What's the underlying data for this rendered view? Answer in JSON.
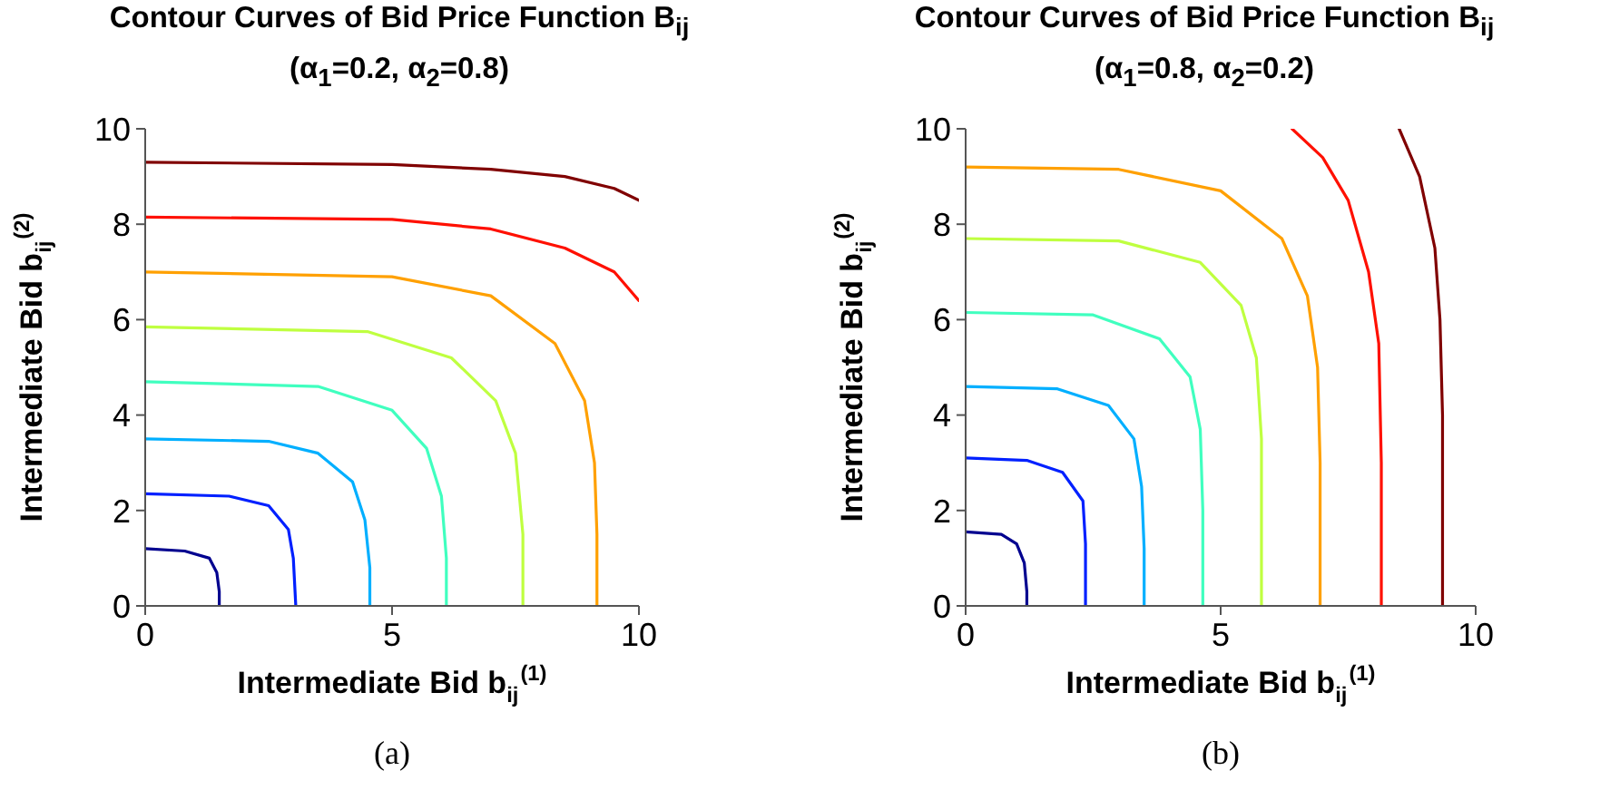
{
  "chart_data": [
    {
      "type": "line",
      "title": "Contour Curves of Bid Price Function B$_{ij}$",
      "subtitle": "(α$_{1}$=0.2, α$_{2}$=0.8)",
      "xlabel": "Intermediate Bid b$_{ij}$$^{(1)}$",
      "ylabel": "Intermediate Bid b$_{ij}$$^{(2)}$",
      "annotations": [
        "(a)"
      ],
      "xlim": [
        0,
        10
      ],
      "xticks": [
        0,
        5,
        10
      ],
      "ylim": [
        0,
        10
      ],
      "yticks": [
        0,
        2,
        4,
        6,
        8,
        10
      ],
      "grid": false,
      "marker": "none",
      "line_style": "solid",
      "series": [
        {
          "color": "#00008f",
          "x": [
            0,
            0.8,
            1.3,
            1.45,
            1.5,
            1.5
          ],
          "values": [
            1.2,
            1.15,
            1.0,
            0.7,
            0.3,
            0
          ]
        },
        {
          "color": "#0020ff",
          "x": [
            0,
            1.7,
            2.5,
            2.9,
            3.0,
            3.05
          ],
          "values": [
            2.35,
            2.3,
            2.1,
            1.6,
            1.0,
            0
          ]
        },
        {
          "color": "#00afff",
          "x": [
            0,
            2.5,
            3.5,
            4.2,
            4.45,
            4.55,
            4.55
          ],
          "values": [
            3.5,
            3.45,
            3.2,
            2.6,
            1.8,
            0.8,
            0
          ]
        },
        {
          "color": "#40ffbf",
          "x": [
            0,
            3.5,
            5.0,
            5.7,
            6.0,
            6.1,
            6.1
          ],
          "values": [
            4.7,
            4.6,
            4.1,
            3.3,
            2.3,
            1.0,
            0
          ]
        },
        {
          "color": "#bfff40",
          "x": [
            0,
            4.5,
            6.2,
            7.1,
            7.5,
            7.65,
            7.65
          ],
          "values": [
            5.85,
            5.75,
            5.2,
            4.3,
            3.2,
            1.5,
            0
          ]
        },
        {
          "color": "#ffa000",
          "x": [
            0,
            5.0,
            7.0,
            8.3,
            8.9,
            9.1,
            9.15,
            9.15
          ],
          "values": [
            7.0,
            6.9,
            6.5,
            5.5,
            4.3,
            3.0,
            1.5,
            0
          ]
        },
        {
          "color": "#ff1000",
          "x": [
            0,
            5.0,
            7.0,
            8.5,
            9.5,
            10
          ],
          "values": [
            8.15,
            8.1,
            7.9,
            7.5,
            7.0,
            6.4
          ]
        },
        {
          "color": "#800000",
          "x": [
            0,
            5.0,
            7.0,
            8.5,
            9.5,
            10
          ],
          "values": [
            9.3,
            9.25,
            9.15,
            9.0,
            8.75,
            8.5
          ]
        }
      ]
    },
    {
      "type": "line",
      "title": "Contour Curves of Bid Price Function B$_{ij}$",
      "subtitle": "(α$_{1}$=0.8, α$_{2}$=0.2)",
      "xlabel": "Intermediate Bid b$_{ij}$$^{(1)}$",
      "ylabel": "Intermediate Bid b$_{ij}$$^{(2)}$",
      "annotations": [
        "(b)"
      ],
      "xlim": [
        0,
        10
      ],
      "xticks": [
        0,
        5,
        10
      ],
      "ylim": [
        0,
        10
      ],
      "yticks": [
        0,
        2,
        4,
        6,
        8,
        10
      ],
      "grid": false,
      "marker": "none",
      "line_style": "solid",
      "series": [
        {
          "color": "#00008f",
          "x": [
            0,
            0.7,
            1.0,
            1.15,
            1.2,
            1.2
          ],
          "values": [
            1.55,
            1.5,
            1.3,
            0.9,
            0.3,
            0
          ]
        },
        {
          "color": "#0020ff",
          "x": [
            0,
            1.2,
            1.9,
            2.3,
            2.35,
            2.35
          ],
          "values": [
            3.1,
            3.05,
            2.8,
            2.2,
            1.3,
            0
          ]
        },
        {
          "color": "#00afff",
          "x": [
            0,
            1.8,
            2.8,
            3.3,
            3.45,
            3.5,
            3.5
          ],
          "values": [
            4.6,
            4.55,
            4.2,
            3.5,
            2.5,
            1.2,
            0
          ]
        },
        {
          "color": "#40ffbf",
          "x": [
            0,
            2.5,
            3.8,
            4.4,
            4.6,
            4.65,
            4.65
          ],
          "values": [
            6.15,
            6.1,
            5.6,
            4.8,
            3.7,
            2.0,
            0
          ]
        },
        {
          "color": "#bfff40",
          "x": [
            0,
            3.0,
            4.6,
            5.4,
            5.7,
            5.8,
            5.8
          ],
          "values": [
            7.7,
            7.65,
            7.2,
            6.3,
            5.2,
            3.5,
            0
          ]
        },
        {
          "color": "#ffa000",
          "x": [
            0,
            3.0,
            5.0,
            6.2,
            6.7,
            6.9,
            6.95,
            6.95
          ],
          "values": [
            9.2,
            9.15,
            8.7,
            7.7,
            6.5,
            5.0,
            3.0,
            0
          ]
        },
        {
          "color": "#ff1000",
          "x": [
            6.4,
            7.0,
            7.5,
            7.9,
            8.1,
            8.15,
            8.15
          ],
          "values": [
            10,
            9.4,
            8.5,
            7.0,
            5.5,
            3.0,
            0
          ]
        },
        {
          "color": "#800000",
          "x": [
            8.5,
            8.9,
            9.2,
            9.3,
            9.35,
            9.35
          ],
          "values": [
            10,
            9.0,
            7.5,
            6.0,
            4.0,
            0
          ]
        }
      ]
    }
  ]
}
